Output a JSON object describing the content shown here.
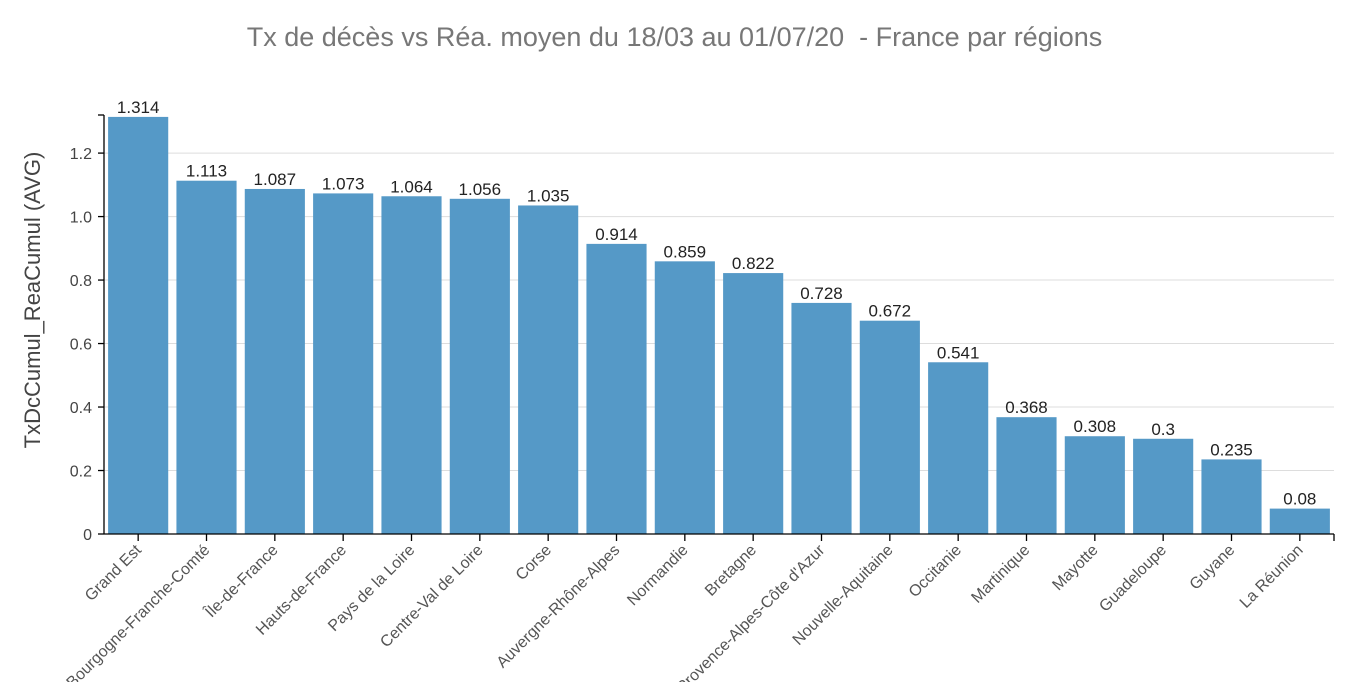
{
  "chart_data": {
    "type": "bar",
    "title": "Tx de décès vs Réa. moyen du 18/03 au 01/07/20  - France par régions",
    "xlabel": "",
    "ylabel": "TxDcCumul_ReaCumul (AVG)",
    "ylim": [
      0,
      1.32
    ],
    "yticks": [
      "0",
      "0.2",
      "0.4",
      "0.6",
      "0.8",
      "1.0",
      "1.2"
    ],
    "grid": true,
    "bar_color": "#5599c7",
    "categories": [
      "Grand Est",
      "Bourgogne-Franche-Comté",
      "Île-de-France",
      "Hauts-de-France",
      "Pays de la Loire",
      "Centre-Val de Loire",
      "Corse",
      "Auvergne-Rhône-Alpes",
      "Normandie",
      "Bretagne",
      "Provence-Alpes-Côte d'Azur",
      "Nouvelle-Aquitaine",
      "Occitanie",
      "Martinique",
      "Mayotte",
      "Guadeloupe",
      "Guyane",
      "La Réunion"
    ],
    "values": [
      1.314,
      1.113,
      1.087,
      1.073,
      1.064,
      1.056,
      1.035,
      0.914,
      0.859,
      0.822,
      0.728,
      0.672,
      0.541,
      0.368,
      0.308,
      0.3,
      0.235,
      0.08
    ],
    "value_labels": [
      "1.314",
      "1.113",
      "1.087",
      "1.073",
      "1.064",
      "1.056",
      "1.035",
      "0.914",
      "0.859",
      "0.822",
      "0.728",
      "0.672",
      "0.541",
      "0.368",
      "0.308",
      "0.3",
      "0.235",
      "0.08"
    ]
  }
}
